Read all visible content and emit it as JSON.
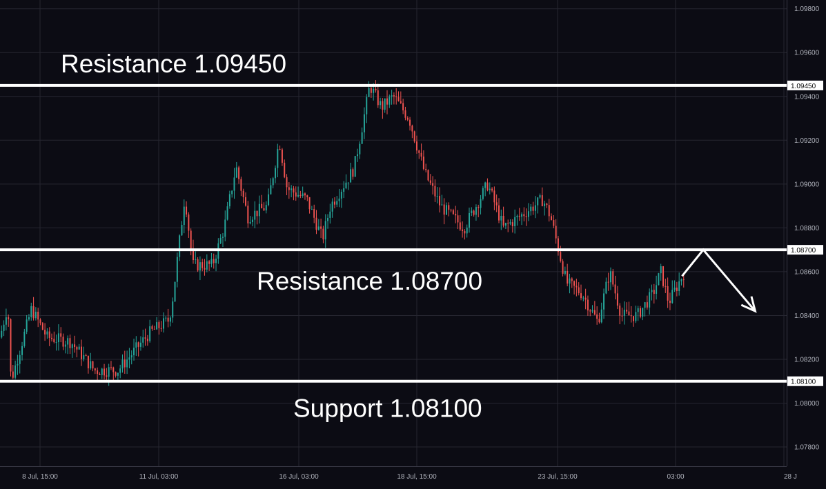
{
  "chart_data": {
    "type": "candlestick",
    "x_tick_labels": [
      "8 Jul, 15:00",
      "11 Jul, 03:00",
      "16 Jul, 03:00",
      "18 Jul, 15:00",
      "23 Jul, 15:00",
      "03:00",
      "28 J"
    ],
    "y_tick_values": [
      1.078,
      1.08,
      1.082,
      1.084,
      1.086,
      1.088,
      1.09,
      1.092,
      1.094,
      1.096,
      1.098
    ],
    "y_tick_labels": [
      "1.07800",
      "1.08000",
      "1.08200",
      "1.08400",
      "1.08600",
      "1.08800",
      "1.09000",
      "1.09200",
      "1.09400",
      "1.09600",
      "1.09800"
    ],
    "ylim": [
      1.07712,
      1.0984
    ],
    "grid": true,
    "horizontal_levels": [
      {
        "value": 1.0945,
        "price_tag": "1.09450",
        "annotation": "Resistance 1.09450"
      },
      {
        "value": 1.087,
        "price_tag": "1.08700",
        "annotation": "Resistance 1.08700"
      },
      {
        "value": 1.081,
        "price_tag": "1.08100",
        "annotation": "Support 1.08100"
      }
    ],
    "price_path": [
      {
        "x": 0.0,
        "y": 1.083
      },
      {
        "x": 0.01,
        "y": 1.0845
      },
      {
        "x": 0.014,
        "y": 1.081
      },
      {
        "x": 0.04,
        "y": 1.0843
      },
      {
        "x": 0.06,
        "y": 1.083
      },
      {
        "x": 0.09,
        "y": 1.0828
      },
      {
        "x": 0.12,
        "y": 1.0815
      },
      {
        "x": 0.15,
        "y": 1.0815
      },
      {
        "x": 0.19,
        "y": 1.0832
      },
      {
        "x": 0.215,
        "y": 1.0838
      },
      {
        "x": 0.22,
        "y": 1.0849
      },
      {
        "x": 0.235,
        "y": 1.0895
      },
      {
        "x": 0.245,
        "y": 1.0863
      },
      {
        "x": 0.27,
        "y": 1.0863
      },
      {
        "x": 0.285,
        "y": 1.088
      },
      {
        "x": 0.3,
        "y": 1.0908
      },
      {
        "x": 0.315,
        "y": 1.0885
      },
      {
        "x": 0.34,
        "y": 1.089
      },
      {
        "x": 0.355,
        "y": 1.092
      },
      {
        "x": 0.365,
        "y": 1.0898
      },
      {
        "x": 0.39,
        "y": 1.0893
      },
      {
        "x": 0.41,
        "y": 1.0875
      },
      {
        "x": 0.42,
        "y": 1.089
      },
      {
        "x": 0.45,
        "y": 1.0907
      },
      {
        "x": 0.465,
        "y": 1.0935
      },
      {
        "x": 0.47,
        "y": 1.0945
      },
      {
        "x": 0.485,
        "y": 1.0935
      },
      {
        "x": 0.5,
        "y": 1.094
      },
      {
        "x": 0.52,
        "y": 1.093
      },
      {
        "x": 0.54,
        "y": 1.0905
      },
      {
        "x": 0.56,
        "y": 1.089
      },
      {
        "x": 0.59,
        "y": 1.088
      },
      {
        "x": 0.62,
        "y": 1.09
      },
      {
        "x": 0.64,
        "y": 1.088
      },
      {
        "x": 0.66,
        "y": 1.0885
      },
      {
        "x": 0.69,
        "y": 1.0893
      },
      {
        "x": 0.7,
        "y": 1.0885
      },
      {
        "x": 0.72,
        "y": 1.0855
      },
      {
        "x": 0.74,
        "y": 1.085
      },
      {
        "x": 0.76,
        "y": 1.0837
      },
      {
        "x": 0.775,
        "y": 1.086
      },
      {
        "x": 0.79,
        "y": 1.084
      },
      {
        "x": 0.81,
        "y": 1.084
      },
      {
        "x": 0.83,
        "y": 1.085
      },
      {
        "x": 0.84,
        "y": 1.086
      },
      {
        "x": 0.85,
        "y": 1.0846
      },
      {
        "x": 0.87,
        "y": 1.086
      }
    ],
    "colors": {
      "up": "#26a69a",
      "down": "#ef5350",
      "background": "#0c0c14",
      "grid": "#262631",
      "level_line": "#ffffff",
      "price_tag_bg": "#ffffff",
      "price_tag_text": "#000000",
      "axis_text": "#b2b5be"
    },
    "projection_path": [
      {
        "x": 0.867,
        "y": 1.0858
      },
      {
        "x": 0.894,
        "y": 1.087
      },
      {
        "x": 0.96,
        "y": 1.0842
      }
    ]
  }
}
